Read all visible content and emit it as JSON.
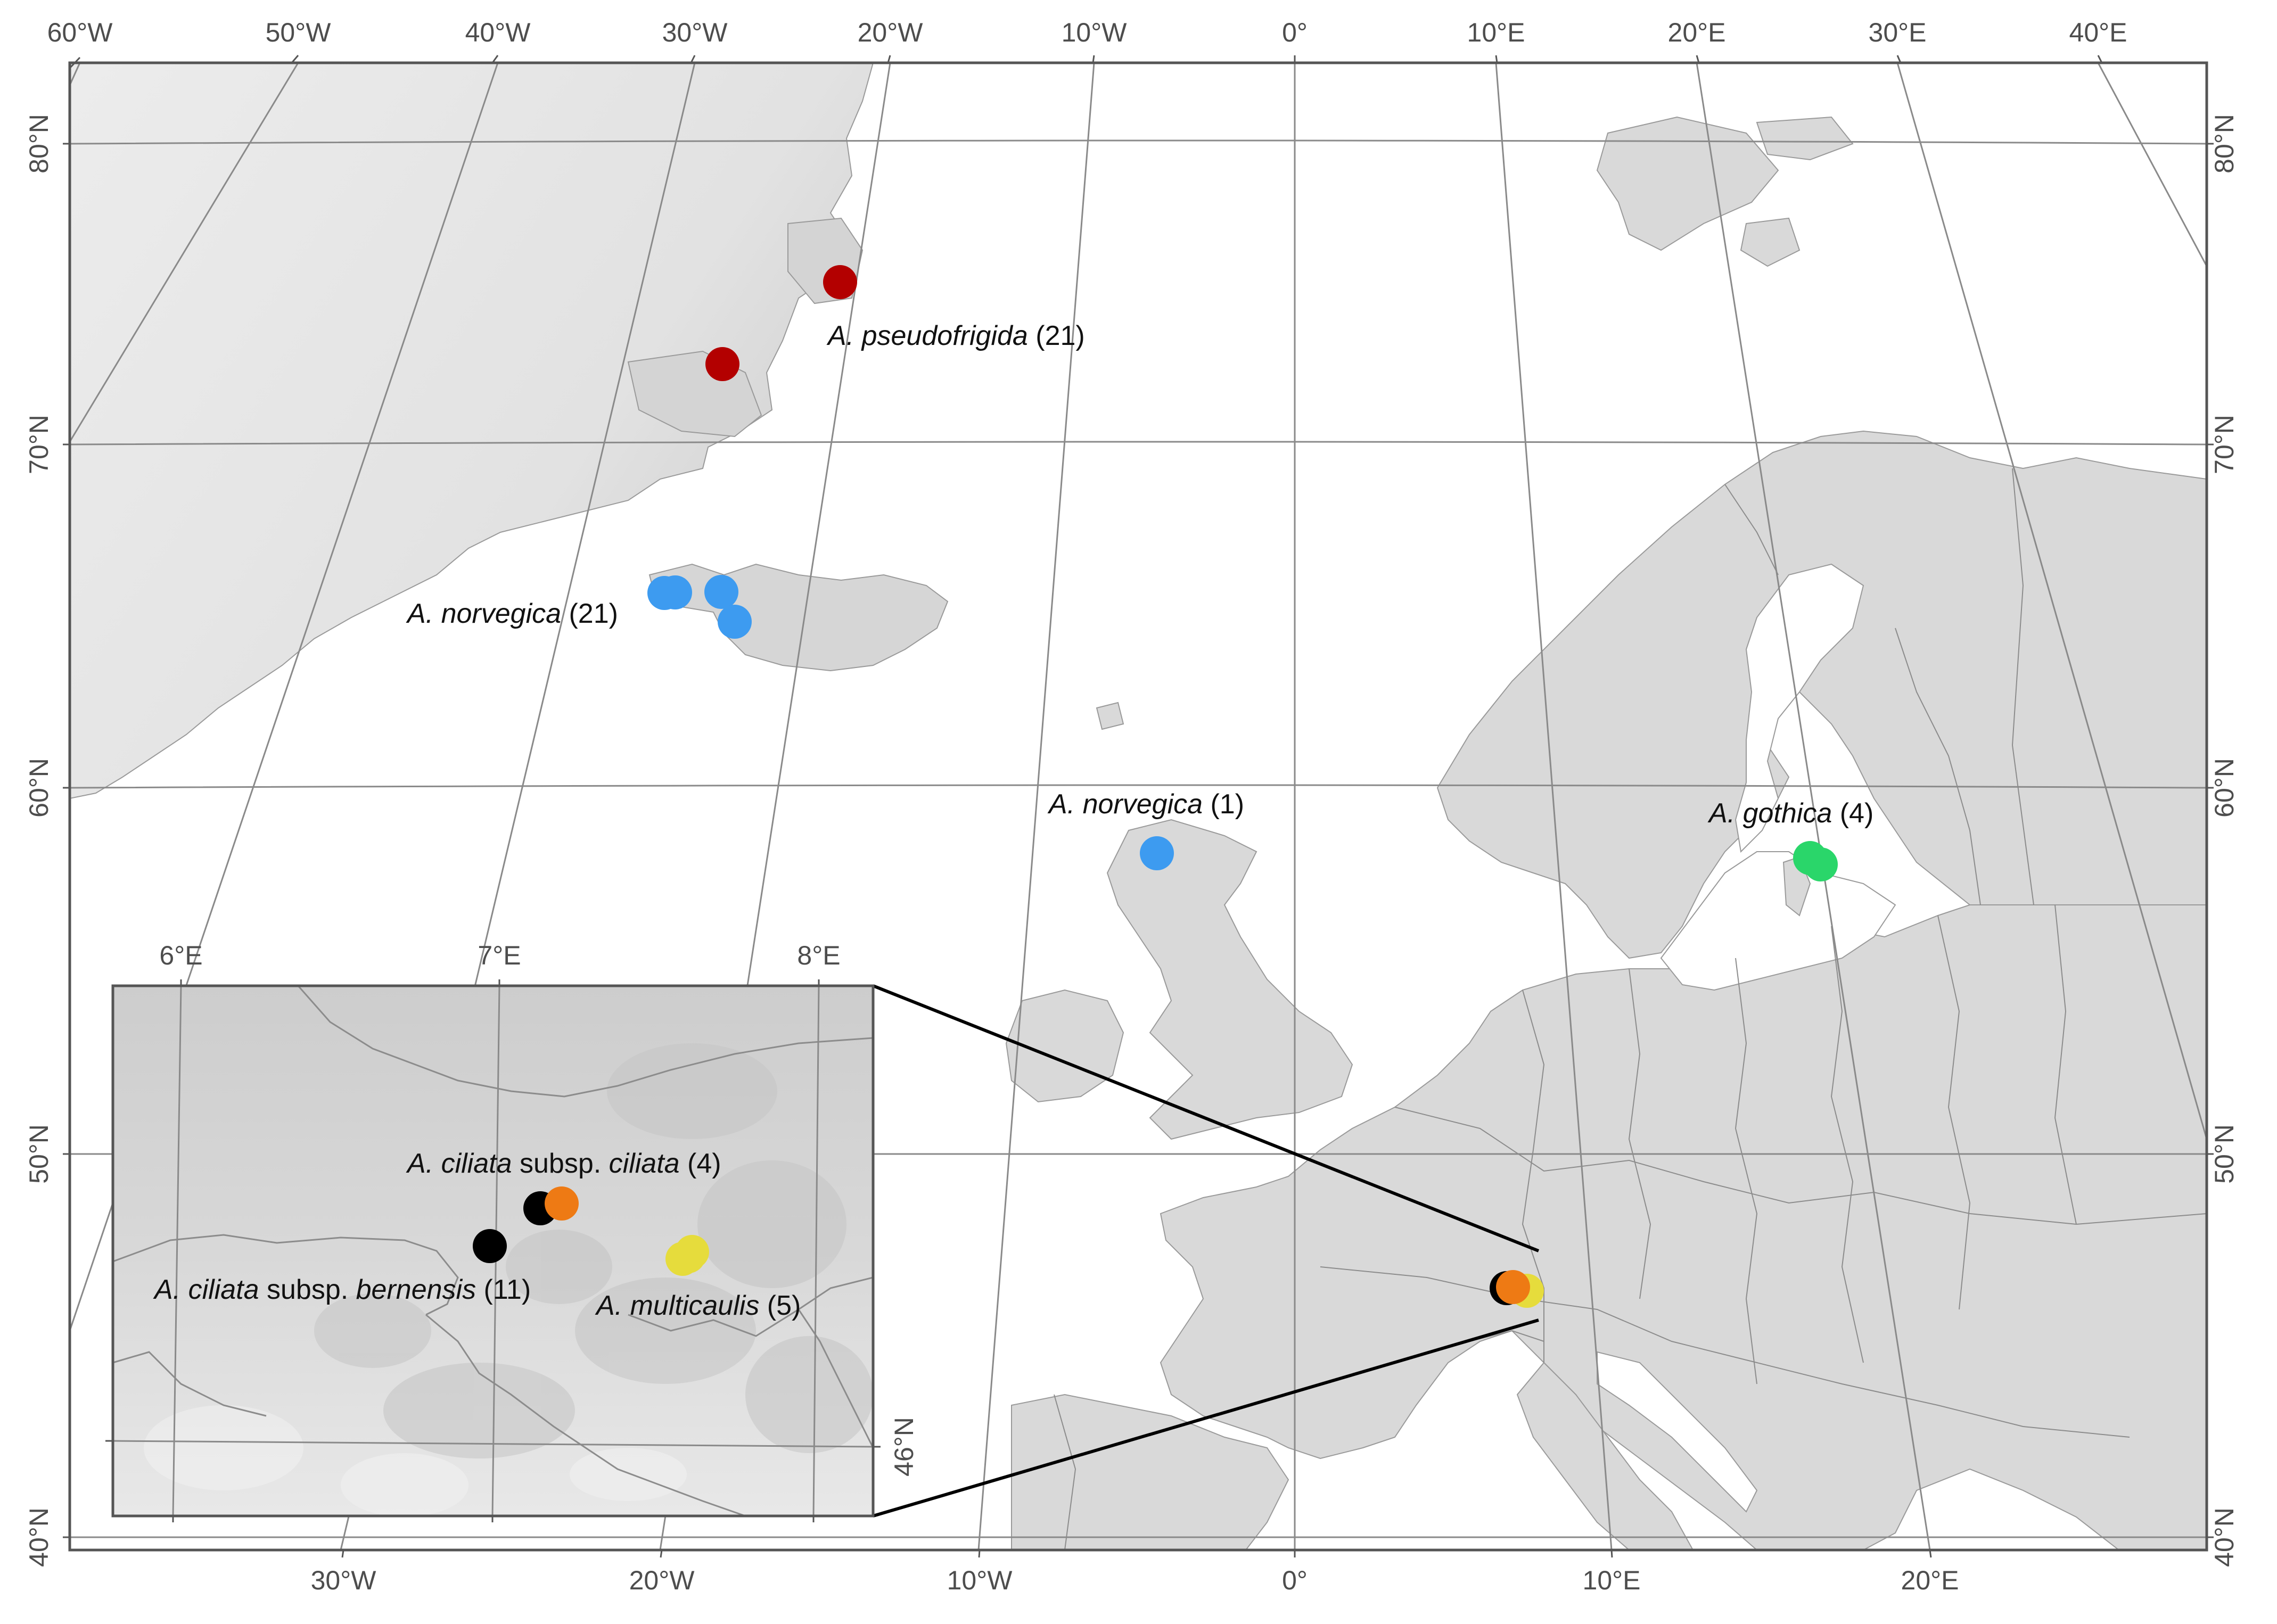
{
  "colors": {
    "ocean": "#ffffff",
    "land": "#d9d9d9",
    "greenland": "#e6e6e6",
    "border": "#8c8c8c",
    "graticule": "#8a8a8a",
    "frame": "#555555",
    "pseudofrigida": "#b30000",
    "norvegica": "#3d9bf0",
    "gothica": "#2ad66a",
    "multicaulis": "#e6dc3c",
    "ciliata_ciliata": "#ee7a14",
    "ciliata_bernensis": "#000000"
  },
  "axes": {
    "top_lon": [
      "60°W",
      "50°W",
      "40°W",
      "30°W",
      "20°W",
      "10°W",
      "0°",
      "10°E",
      "20°E",
      "30°E",
      "40°E"
    ],
    "bottom_lon": [
      "30°W",
      "20°W",
      "10°W",
      "0°",
      "10°E",
      "20°E"
    ],
    "lat": [
      "80°N",
      "70°N",
      "60°N",
      "50°N",
      "40°N"
    ]
  },
  "labels": {
    "pseudofrigida": {
      "species": "A. pseudofrigida",
      "count": " (21)"
    },
    "norvegica_iceland": {
      "species": "A. norvegica",
      "count": " (21)"
    },
    "norvegica_scotland": {
      "species": "A. norvegica",
      "count": " (1)"
    },
    "gothica": {
      "species": "A. gothica",
      "count": " (4)"
    }
  },
  "inset": {
    "lon_ticks": [
      "6°E",
      "7°E",
      "8°E"
    ],
    "lat_tick": "46°N",
    "labels": {
      "ciliata": {
        "species1": "A. ciliata",
        "mid": " subsp. ",
        "species2": "ciliata",
        "count": " (4)"
      },
      "bernensis": {
        "species1": "A. ciliata",
        "mid": " subsp. ",
        "species2": "bernensis",
        "count": " (11)"
      },
      "multicaulis": {
        "species": "A. multicaulis",
        "count": " (5)"
      }
    }
  }
}
